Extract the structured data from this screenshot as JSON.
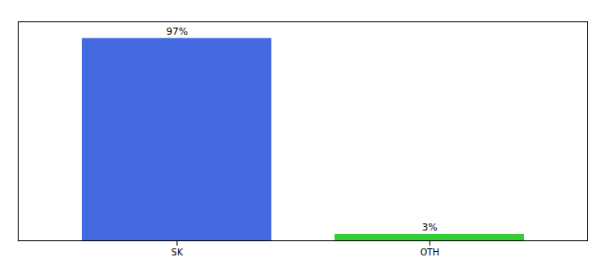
{
  "chart_data": {
    "type": "bar",
    "categories": [
      "SK",
      "OTH"
    ],
    "values": [
      97,
      3
    ],
    "value_labels": [
      "97%",
      "3%"
    ],
    "data_labels": true,
    "colors": [
      "#4469e0",
      "#33cc33"
    ],
    "ylim": [
      0,
      105
    ],
    "tick_labels": "x",
    "grid": false
  }
}
